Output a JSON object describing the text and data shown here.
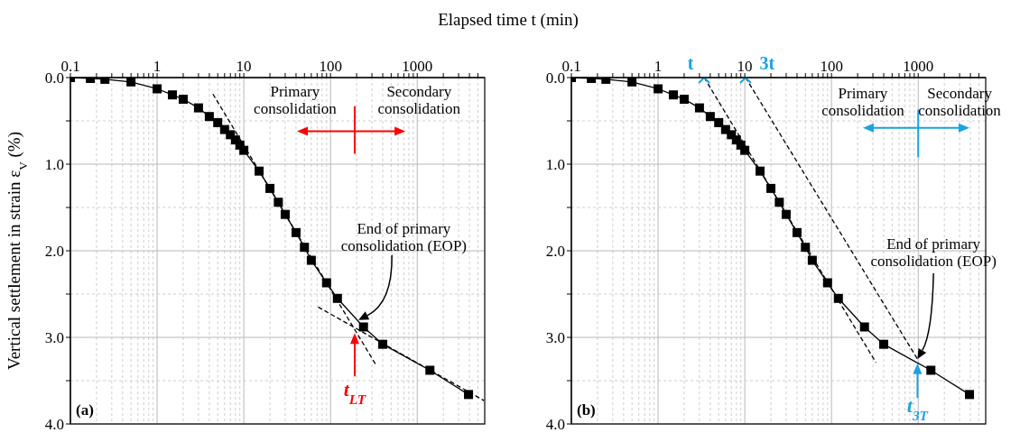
{
  "chart_data": [
    {
      "type": "line",
      "xlabel": "Elapsed time t (min)",
      "ylabel": "Vertical settlement in strain ε$_{V}$ (%)",
      "log": "x",
      "grid": true,
      "xlim": [
        0.1,
        6000
      ],
      "xticks": [
        0.1,
        {
          "value": 0.2,
          "label": null
        },
        {
          "value": 0.3,
          "label": null
        },
        {
          "value": 0.4,
          "label": null
        },
        {
          "value": 0.5,
          "label": null
        },
        {
          "value": 0.6,
          "label": null
        },
        {
          "value": 0.7,
          "label": null
        },
        {
          "value": 0.8,
          "label": null
        },
        {
          "value": 0.9,
          "label": null
        },
        1,
        {
          "value": 2,
          "label": null
        },
        {
          "value": 3,
          "label": null
        },
        {
          "value": 4,
          "label": null
        },
        {
          "value": 5,
          "label": null
        },
        {
          "value": 6,
          "label": null
        },
        {
          "value": 7,
          "label": null
        },
        {
          "value": 8,
          "label": null
        },
        {
          "value": 9,
          "label": null
        },
        10,
        {
          "value": 20,
          "label": null
        },
        {
          "value": 30,
          "label": null
        },
        {
          "value": 40,
          "label": null
        },
        {
          "value": 50,
          "label": null
        },
        {
          "value": 60,
          "label": null
        },
        {
          "value": 70,
          "label": null
        },
        {
          "value": 80,
          "label": null
        },
        {
          "value": 90,
          "label": null
        },
        100,
        {
          "value": 200,
          "label": null
        },
        {
          "value": 300,
          "label": null
        },
        {
          "value": 400,
          "label": null
        },
        {
          "value": 500,
          "label": null
        },
        {
          "value": 600,
          "label": null
        },
        {
          "value": 700,
          "label": null
        },
        {
          "value": 800,
          "label": null
        },
        {
          "value": 900,
          "label": null
        },
        1000,
        {
          "value": 2000,
          "label": null
        },
        {
          "value": 3000,
          "label": null
        },
        {
          "value": 4000,
          "label": null
        },
        {
          "value": 5000,
          "label": null
        }
      ],
      "ylim": [
        4.0,
        0.0
      ],
      "yticks": [
        {
          "value": 0,
          "label": "0.0"
        },
        {
          "value": 0.5,
          "label": null
        },
        {
          "value": 1,
          "label": "1.0"
        },
        {
          "value": 1.5,
          "label": null
        },
        {
          "value": 2,
          "label": "2.0"
        },
        {
          "value": 2.5,
          "label": null
        },
        {
          "value": 3,
          "label": "3.0"
        },
        {
          "value": 3.5,
          "label": null
        },
        {
          "value": 4,
          "label": "4.0"
        }
      ],
      "series": [
        {
          "type": "line",
          "color": "#000000",
          "marker": "square",
          "line_style": "solid",
          "x": [
            0.1,
            0.17,
            0.25,
            0.5,
            1,
            1.5,
            2,
            3,
            4,
            5,
            6,
            7,
            8,
            9,
            10,
            15,
            20,
            25,
            30,
            40,
            50,
            60,
            90,
            120,
            240,
            400,
            1400,
            3900
          ],
          "values": [
            0,
            0.01,
            0.02,
            0.05,
            0.13,
            0.2,
            0.25,
            0.35,
            0.45,
            0.52,
            0.6,
            0.66,
            0.72,
            0.78,
            0.84,
            1.08,
            1.28,
            1.44,
            1.58,
            1.79,
            1.96,
            2.11,
            2.37,
            2.55,
            2.88,
            3.08,
            3.38,
            3.66
          ]
        },
        {
          "type": "line",
          "color": "#000000",
          "marker": "none",
          "line_style": "dashed",
          "x": [
            4.4,
            335
          ],
          "values": [
            0.19,
            3.32
          ]
        },
        {
          "type": "line",
          "color": "#000000",
          "marker": "none",
          "line_style": "dashed",
          "x": [
            72,
            5900
          ],
          "values": [
            2.65,
            3.73
          ]
        }
      ],
      "annotations": [
        "Primary\nconsolidation",
        "Secondary\nconsolidation",
        "End of primary\nconsolidation (EOP)",
        {
          "text": "t$_{LT}$",
          "x": 190,
          "y": 2.95
        },
        "(a)"
      ]
    },
    {
      "type": "line",
      "log": "x",
      "grid": true,
      "xlim": [
        0.1,
        6000
      ],
      "xticks": [
        0.1,
        {
          "value": 0.2,
          "label": null
        },
        {
          "value": 0.3,
          "label": null
        },
        {
          "value": 0.4,
          "label": null
        },
        {
          "value": 0.5,
          "label": null
        },
        {
          "value": 0.6,
          "label": null
        },
        {
          "value": 0.7,
          "label": null
        },
        {
          "value": 0.8,
          "label": null
        },
        {
          "value": 0.9,
          "label": null
        },
        1,
        {
          "value": 2,
          "label": null
        },
        {
          "value": 3,
          "label": null
        },
        {
          "value": 4,
          "label": null
        },
        {
          "value": 5,
          "label": null
        },
        {
          "value": 6,
          "label": null
        },
        {
          "value": 7,
          "label": null
        },
        {
          "value": 8,
          "label": null
        },
        {
          "value": 9,
          "label": null
        },
        10,
        {
          "value": 20,
          "label": null
        },
        {
          "value": 30,
          "label": null
        },
        {
          "value": 40,
          "label": null
        },
        {
          "value": 50,
          "label": null
        },
        {
          "value": 60,
          "label": null
        },
        {
          "value": 70,
          "label": null
        },
        {
          "value": 80,
          "label": null
        },
        {
          "value": 90,
          "label": null
        },
        100,
        {
          "value": 200,
          "label": null
        },
        {
          "value": 300,
          "label": null
        },
        {
          "value": 400,
          "label": null
        },
        {
          "value": 500,
          "label": null
        },
        {
          "value": 600,
          "label": null
        },
        {
          "value": 700,
          "label": null
        },
        {
          "value": 800,
          "label": null
        },
        {
          "value": 900,
          "label": null
        },
        1000,
        {
          "value": 2000,
          "label": null
        },
        {
          "value": 3000,
          "label": null
        },
        {
          "value": 4000,
          "label": null
        },
        {
          "value": 5000,
          "label": null
        }
      ],
      "ylim": [
        4.0,
        0.0
      ],
      "yticks": [
        {
          "value": 0,
          "label": "0.0"
        },
        {
          "value": 0.5,
          "label": null
        },
        {
          "value": 1,
          "label": "1.0"
        },
        {
          "value": 1.5,
          "label": null
        },
        {
          "value": 2,
          "label": "2.0"
        },
        {
          "value": 2.5,
          "label": null
        },
        {
          "value": 3,
          "label": "3.0"
        },
        {
          "value": 3.5,
          "label": null
        },
        {
          "value": 4,
          "label": "4.0"
        }
      ],
      "series": [
        {
          "type": "line",
          "color": "#000000",
          "marker": "square",
          "line_style": "solid",
          "x": [
            0.1,
            0.17,
            0.25,
            0.5,
            1,
            1.5,
            2,
            3,
            4,
            5,
            6,
            7,
            8,
            9,
            10,
            15,
            20,
            25,
            30,
            40,
            50,
            60,
            90,
            120,
            240,
            400,
            1400,
            3900
          ],
          "values": [
            0,
            0.01,
            0.02,
            0.05,
            0.13,
            0.2,
            0.25,
            0.35,
            0.45,
            0.52,
            0.6,
            0.66,
            0.72,
            0.78,
            0.84,
            1.08,
            1.28,
            1.44,
            1.58,
            1.79,
            1.96,
            2.11,
            2.37,
            2.55,
            2.88,
            3.08,
            3.38,
            3.66
          ]
        },
        {
          "type": "line",
          "color": "#000000",
          "marker": "none",
          "line_style": "dashed",
          "x": [
            3.4,
            325
          ],
          "values": [
            0,
            3.29
          ]
        },
        {
          "type": "line",
          "color": "#000000",
          "marker": "none",
          "line_style": "dashed",
          "x": [
            10.2,
            980
          ],
          "values": [
            0,
            3.25
          ]
        },
        {
          "type": "scatter",
          "color": "#1aa3e0",
          "marker": "cross",
          "x": [
            3.4,
            10.2
          ],
          "values": [
            0,
            0
          ]
        }
      ],
      "annotations": [
        {
          "text": "t",
          "x": 3.4,
          "y": 0
        },
        {
          "text": "3t",
          "x": 10.2,
          "y": 0
        },
        "Primary\nconsolidation",
        "Secondary\nconsolidation",
        "End of primary\nconsolidation (EOP)",
        {
          "text": "t$_{3T}$",
          "x": 980,
          "y": 3.3
        },
        "(b)"
      ]
    }
  ]
}
